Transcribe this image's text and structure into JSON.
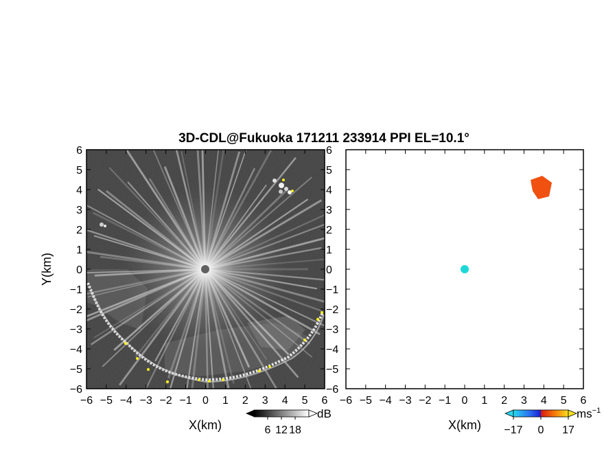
{
  "title": "3D-CDL@Fukuoka 171211 233914 PPI EL=10.1°",
  "chart_data": [
    {
      "type": "heatmap",
      "panel": "left",
      "quantity": "reflectivity",
      "xlabel": "X(km)",
      "ylabel": "Y(km)",
      "xlim": [
        -6,
        6
      ],
      "ylim": [
        -6,
        6
      ],
      "xticks": [
        "−6",
        "−5",
        "−4",
        "−3",
        "−2",
        "−1",
        "0",
        "1",
        "2",
        "3",
        "4",
        "5",
        "6"
      ],
      "yticks": [
        "−6",
        "−5",
        "−4",
        "−3",
        "−2",
        "−1",
        "0",
        "1",
        "2",
        "3",
        "4",
        "5",
        "6"
      ],
      "colorbar": {
        "unit": "dB",
        "ticks": [
          "6",
          "12",
          "18"
        ],
        "range": [
          0,
          24
        ],
        "colormap": "grayscale",
        "extend": "both"
      },
      "colors": {
        "background": "#1e1e1e",
        "echo": "#f2f2f2",
        "highlight": "#f5f020",
        "radar_center": "#606060"
      }
    },
    {
      "type": "heatmap",
      "panel": "right",
      "quantity": "doppler_velocity",
      "xlabel": "X(km)",
      "ylabel": "",
      "xlim": [
        -6,
        6
      ],
      "ylim": [
        -6,
        6
      ],
      "xticks": [
        "−6",
        "−5",
        "−4",
        "−3",
        "−2",
        "−1",
        "0",
        "1",
        "2",
        "3",
        "4",
        "5",
        "6"
      ],
      "yticks": [
        "−6",
        "−5",
        "−4",
        "−3",
        "−2",
        "−1",
        "0",
        "1",
        "2",
        "3",
        "4",
        "5",
        "6"
      ],
      "colorbar": {
        "unit": "ms",
        "unit_exp": "−1",
        "ticks": [
          "−17",
          "0",
          "17"
        ],
        "range": [
          -17,
          17
        ],
        "colormap": "cyan-blue-red-yellow",
        "extend": "both"
      },
      "colors": {
        "cyan": "#2ad0ee",
        "blue": "#1438e0",
        "red": "#e02814",
        "orange": "#f58a0a",
        "yellow": "#f7cc14",
        "radar_center": "#1ed8d8"
      }
    }
  ]
}
